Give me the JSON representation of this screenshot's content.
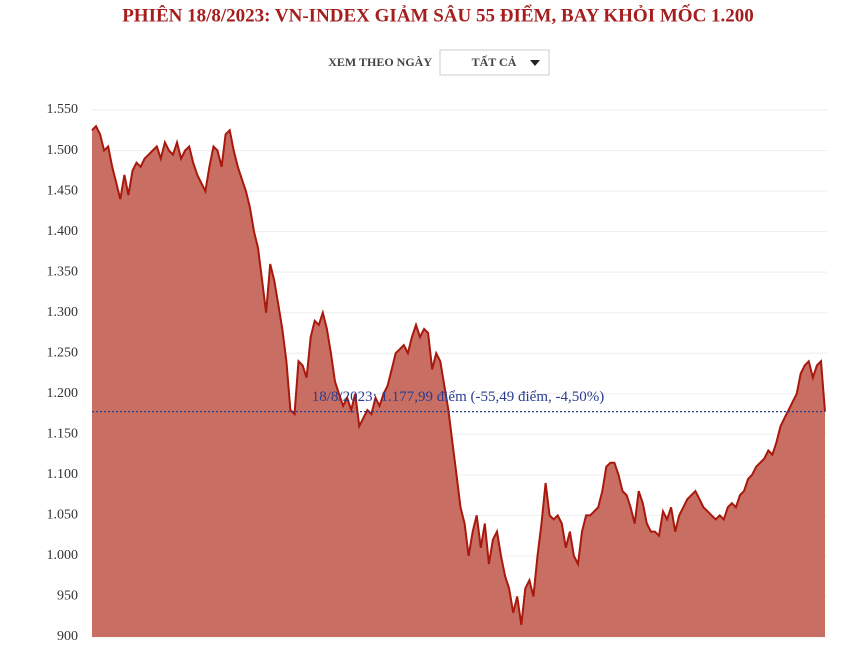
{
  "chart_data": {
    "type": "area",
    "title": "PHIÊN 18/8/2023: VN-INDEX GIẢM SÂU 55 ĐIỂM, BAY KHỎI MỐC 1.200",
    "controls": {
      "label": "XEM THEO NGÀY",
      "dropdown": "TẤT CẢ"
    },
    "color": "#c96e62",
    "line_color": "#a8180c",
    "ylim": [
      900,
      1550
    ],
    "yticks": [
      {
        "value": 900,
        "label": "900"
      },
      950,
      {
        "value": 1000,
        "label": "1.000"
      },
      {
        "value": 1050,
        "label": "1.050"
      },
      {
        "value": 1100,
        "label": "1.100"
      },
      {
        "value": 1150,
        "label": "1.150"
      },
      {
        "value": 1200,
        "label": "1.200"
      },
      {
        "value": 1250,
        "label": "1.250"
      },
      {
        "value": 1300,
        "label": "1.300"
      },
      {
        "value": 1350,
        "label": "1.350"
      },
      {
        "value": 1400,
        "label": "1.400"
      },
      {
        "value": 1450,
        "label": "1.450"
      },
      {
        "value": 1500,
        "label": "1.500"
      },
      {
        "value": 1550,
        "label": "1.550"
      }
    ],
    "grid": true,
    "reference_line": {
      "value": 1177.99,
      "label": "18/8/2023: 1.177,99 điểm (-55,49 điểm, -4,50%)",
      "color": "#2a3d8f"
    },
    "values": [
      1525,
      1530,
      1520,
      1500,
      1505,
      1480,
      1460,
      1440,
      1470,
      1445,
      1475,
      1485,
      1480,
      1490,
      1495,
      1500,
      1505,
      1490,
      1510,
      1500,
      1495,
      1510,
      1490,
      1500,
      1505,
      1485,
      1470,
      1460,
      1450,
      1480,
      1505,
      1500,
      1480,
      1520,
      1525,
      1500,
      1480,
      1465,
      1450,
      1430,
      1400,
      1380,
      1340,
      1300,
      1360,
      1340,
      1310,
      1280,
      1240,
      1180,
      1175,
      1240,
      1235,
      1220,
      1270,
      1290,
      1285,
      1300,
      1280,
      1250,
      1215,
      1200,
      1185,
      1195,
      1180,
      1200,
      1160,
      1170,
      1180,
      1175,
      1195,
      1185,
      1200,
      1210,
      1230,
      1250,
      1255,
      1260,
      1250,
      1270,
      1285,
      1270,
      1280,
      1275,
      1230,
      1250,
      1240,
      1210,
      1180,
      1140,
      1100,
      1060,
      1040,
      1000,
      1030,
      1050,
      1010,
      1040,
      990,
      1020,
      1030,
      1000,
      975,
      960,
      930,
      950,
      915,
      960,
      970,
      950,
      1000,
      1040,
      1090,
      1050,
      1045,
      1050,
      1040,
      1010,
      1030,
      1000,
      990,
      1030,
      1050,
      1050,
      1055,
      1060,
      1080,
      1110,
      1115,
      1115,
      1100,
      1080,
      1075,
      1060,
      1040,
      1080,
      1065,
      1040,
      1030,
      1030,
      1025,
      1055,
      1045,
      1060,
      1030,
      1050,
      1060,
      1070,
      1075,
      1080,
      1070,
      1060,
      1055,
      1050,
      1045,
      1050,
      1045,
      1060,
      1065,
      1060,
      1075,
      1080,
      1095,
      1100,
      1110,
      1115,
      1120,
      1130,
      1125,
      1140,
      1160,
      1170,
      1180,
      1190,
      1200,
      1225,
      1235,
      1240,
      1220,
      1235,
      1240,
      1177.99
    ]
  }
}
